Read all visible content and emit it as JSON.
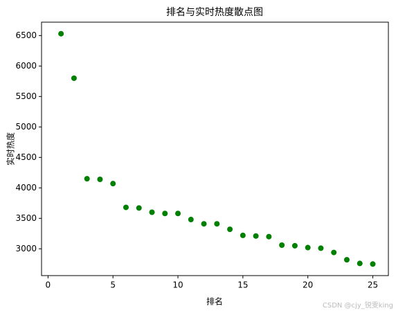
{
  "chart_data": {
    "type": "scatter",
    "title": "排名与实时热度散点图",
    "x_label": "排名",
    "y_label": "实时热度",
    "x": [
      1,
      2,
      3,
      4,
      5,
      6,
      7,
      8,
      9,
      10,
      11,
      12,
      13,
      14,
      15,
      16,
      17,
      18,
      19,
      20,
      21,
      22,
      23,
      24,
      25
    ],
    "values": [
      6530,
      5800,
      4150,
      4140,
      4070,
      3680,
      3670,
      3600,
      3580,
      3580,
      3480,
      3410,
      3410,
      3320,
      3220,
      3210,
      3200,
      3060,
      3050,
      3020,
      3010,
      2940,
      2820,
      2760,
      2750
    ],
    "color": "#008000",
    "xlim": [
      -0.5,
      26.2
    ],
    "xticks": [
      0,
      5,
      10,
      15,
      20,
      25
    ],
    "ylim": [
      2560,
      6720
    ],
    "yticks": [
      3000,
      3500,
      4000,
      4500,
      5000,
      5500,
      6000,
      6500
    ],
    "watermark": "CSDN @cjy_锐雯king"
  }
}
